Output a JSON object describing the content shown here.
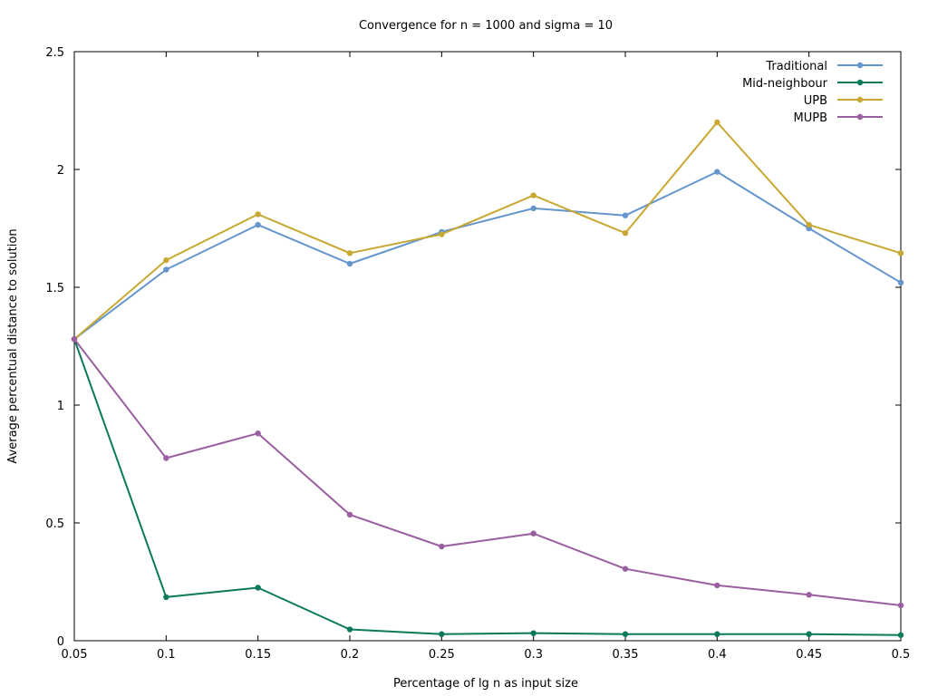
{
  "chart_data": {
    "type": "line",
    "title": "Convergence for n = 1000 and sigma = 10",
    "xlabel": "Percentage of lg n as input size",
    "ylabel": "Average percentual distance to solution",
    "xlim": [
      0.05,
      0.5
    ],
    "ylim": [
      0,
      2.5
    ],
    "x_ticks": [
      "0.05",
      "0.1",
      "0.15",
      "0.2",
      "0.25",
      "0.3",
      "0.35",
      "0.4",
      "0.45",
      "0.5"
    ],
    "y_ticks": [
      "0",
      "0.5",
      "1",
      "1.5",
      "2",
      "2.5"
    ],
    "grid": false,
    "legend_position": "top-right",
    "x": [
      0.05,
      0.1,
      0.15,
      0.2,
      0.25,
      0.3,
      0.35,
      0.4,
      0.45,
      0.5
    ],
    "series": [
      {
        "name": "Traditional",
        "color": "#6495cd",
        "values": [
          1.28,
          1.575,
          1.765,
          1.6,
          1.735,
          1.835,
          1.805,
          1.99,
          1.75,
          1.52
        ]
      },
      {
        "name": "Mid-neighbour",
        "color": "#0a7a5a",
        "values": [
          1.28,
          0.185,
          0.225,
          0.048,
          0.028,
          0.032,
          0.028,
          0.028,
          0.028,
          0.024
        ]
      },
      {
        "name": "UPB",
        "color": "#c8a832",
        "values": [
          1.28,
          1.615,
          1.81,
          1.645,
          1.725,
          1.89,
          1.73,
          2.2,
          1.765,
          1.645
        ]
      },
      {
        "name": "MUPB",
        "color": "#9a5fa0",
        "values": [
          1.28,
          0.775,
          0.88,
          0.535,
          0.4,
          0.455,
          0.305,
          0.235,
          0.195,
          0.15
        ]
      }
    ]
  }
}
